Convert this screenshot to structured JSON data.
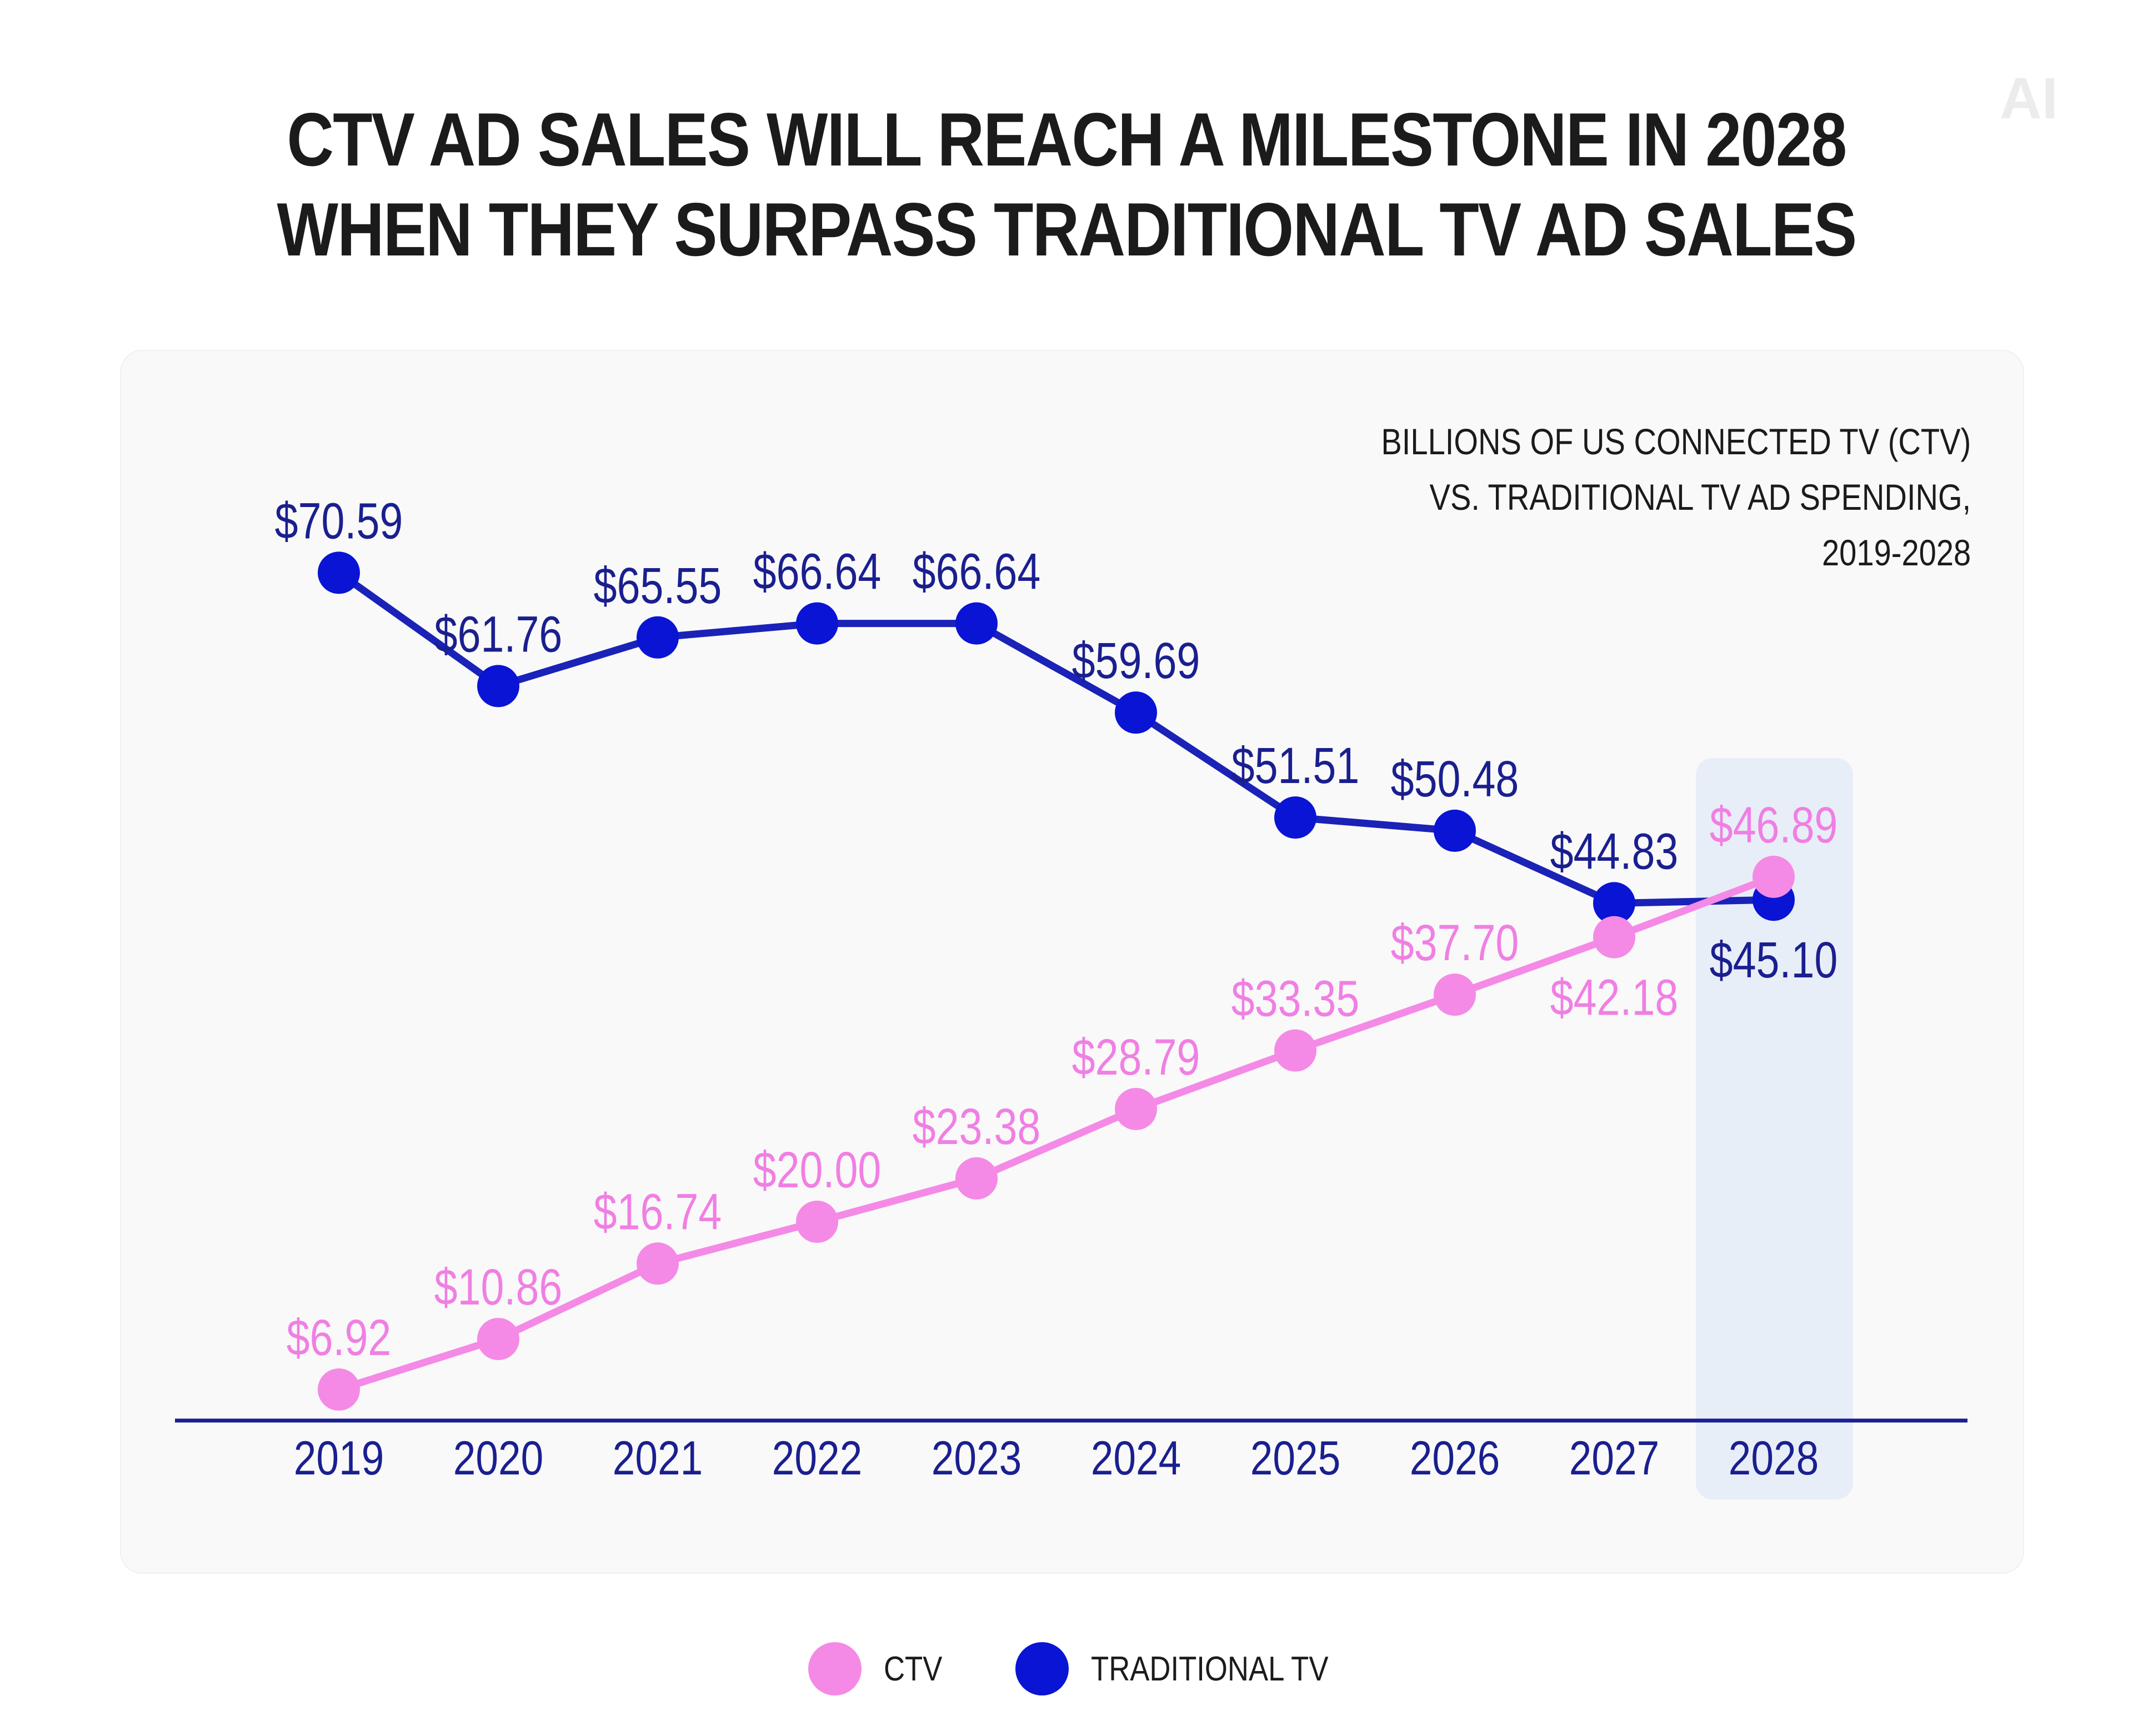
{
  "logo_text": "AI",
  "chart_data": {
    "type": "line",
    "title": [
      "CTV AD SALES WILL REACH A MILESTONE IN 2028",
      "WHEN THEY SURPASS TRADITIONAL TV AD SALES"
    ],
    "subtitle": [
      "BILLIONS OF US CONNECTED TV (CTV)",
      "VS. TRADITIONAL TV AD SPENDING,",
      "2019-2028"
    ],
    "categories": [
      "2019",
      "2020",
      "2021",
      "2022",
      "2023",
      "2024",
      "2025",
      "2026",
      "2027",
      "2028"
    ],
    "highlight_category": "2028",
    "grid": false,
    "legend_placement": "bottom",
    "series": [
      {
        "name": "CTV",
        "color": "#f48ae6",
        "label_color": "#f07fe3",
        "values": [
          6.92,
          10.86,
          16.74,
          20.0,
          23.38,
          28.79,
          33.35,
          37.7,
          42.18,
          46.89
        ],
        "labels": [
          "$6.92",
          "$10.86",
          "$16.74",
          "$20.00",
          "$23.38",
          "$28.79",
          "$33.35",
          "$37.70",
          "$42.18",
          "$46.89"
        ]
      },
      {
        "name": "TRADITIONAL TV",
        "color": "#0a14d4",
        "label_color": "#1a1f8f",
        "values": [
          70.59,
          61.76,
          65.55,
          66.64,
          66.64,
          59.69,
          51.51,
          50.48,
          44.83,
          45.1
        ],
        "labels": [
          "$70.59",
          "$61.76",
          "$65.55",
          "$66.64",
          "$66.64",
          "$59.69",
          "$51.51",
          "$50.48",
          "$44.83",
          "$45.10"
        ]
      }
    ],
    "colors": {
      "axis": "#1a1f8f",
      "highlight": "#e8eef8",
      "line_trad": "#1a22b8"
    }
  }
}
